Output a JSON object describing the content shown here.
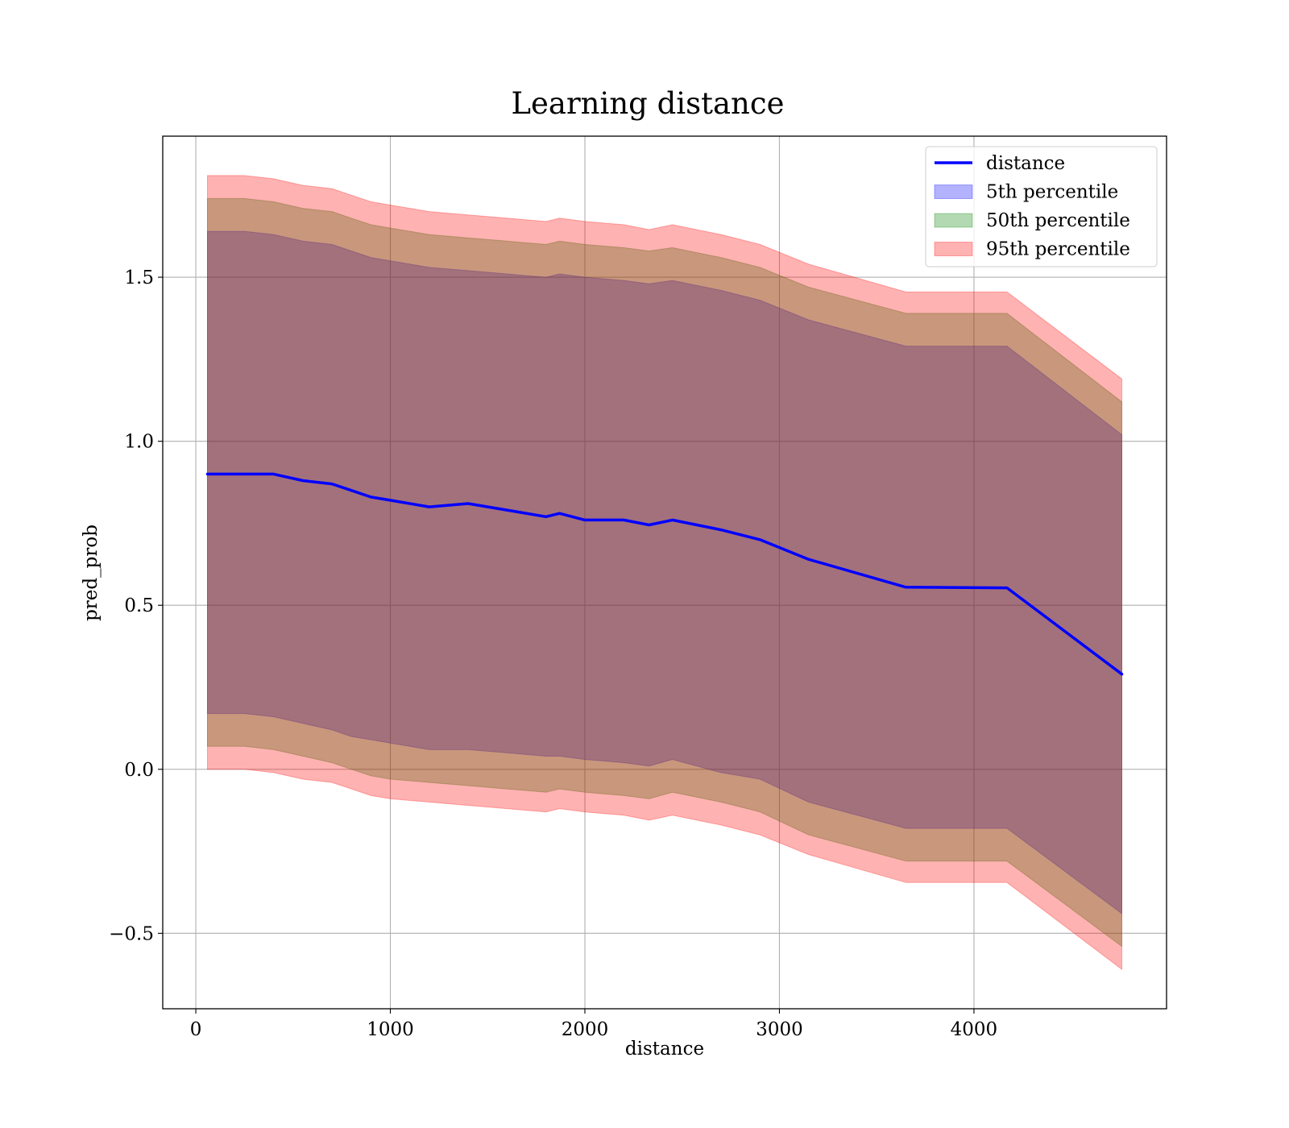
{
  "chart_data": {
    "type": "area",
    "title": "Learning distance",
    "xlabel": "distance",
    "ylabel": "pred_prob",
    "xlim": [
      -170,
      4990
    ],
    "ylim": [
      -0.73,
      1.93
    ],
    "grid": true,
    "legend_position": "top-right",
    "x_ticks": [
      0,
      1000,
      2000,
      3000,
      4000
    ],
    "x_tick_labels": [
      "0",
      "1000",
      "2000",
      "3000",
      "4000"
    ],
    "y_ticks": [
      -0.5,
      0.0,
      0.5,
      1.0,
      1.5
    ],
    "y_tick_labels": [
      "−0.5",
      "0.0",
      "0.5",
      "1.0",
      "1.5"
    ],
    "x": [
      60,
      250,
      400,
      550,
      700,
      800,
      900,
      1000,
      1200,
      1400,
      1600,
      1800,
      1870,
      2000,
      2200,
      2330,
      2450,
      2700,
      2900,
      3150,
      3650,
      4170,
      4760
    ],
    "series": [
      {
        "name": "distance",
        "kind": "line",
        "color": "#0000ff",
        "values": [
          0.9,
          0.9,
          0.9,
          0.88,
          0.87,
          0.85,
          0.83,
          0.82,
          0.8,
          0.81,
          0.79,
          0.77,
          0.78,
          0.76,
          0.76,
          0.745,
          0.76,
          0.73,
          0.7,
          0.64,
          0.555,
          0.553,
          0.29
        ]
      },
      {
        "name": "5th percentile",
        "kind": "band",
        "color": "#0000ff",
        "lower": [
          0.17,
          0.17,
          0.16,
          0.14,
          0.12,
          0.1,
          0.09,
          0.08,
          0.06,
          0.06,
          0.05,
          0.04,
          0.04,
          0.03,
          0.02,
          0.01,
          0.03,
          -0.01,
          -0.03,
          -0.1,
          -0.18,
          -0.18,
          -0.44
        ],
        "upper": [
          1.64,
          1.64,
          1.63,
          1.61,
          1.6,
          1.58,
          1.56,
          1.55,
          1.53,
          1.52,
          1.51,
          1.5,
          1.51,
          1.5,
          1.49,
          1.48,
          1.49,
          1.46,
          1.43,
          1.37,
          1.29,
          1.29,
          1.02
        ]
      },
      {
        "name": "50th percentile",
        "kind": "band",
        "color": "#008000",
        "lower": [
          0.07,
          0.07,
          0.06,
          0.04,
          0.02,
          0.0,
          -0.02,
          -0.03,
          -0.04,
          -0.05,
          -0.06,
          -0.07,
          -0.06,
          -0.07,
          -0.08,
          -0.09,
          -0.07,
          -0.1,
          -0.13,
          -0.2,
          -0.28,
          -0.28,
          -0.54
        ],
        "upper": [
          1.74,
          1.74,
          1.73,
          1.71,
          1.7,
          1.68,
          1.66,
          1.65,
          1.63,
          1.62,
          1.61,
          1.6,
          1.61,
          1.6,
          1.59,
          1.58,
          1.59,
          1.56,
          1.53,
          1.47,
          1.39,
          1.39,
          1.12
        ]
      },
      {
        "name": "95th percentile",
        "kind": "band",
        "color": "#ff0000",
        "lower": [
          0.0,
          0.0,
          -0.01,
          -0.03,
          -0.04,
          -0.06,
          -0.08,
          -0.09,
          -0.1,
          -0.11,
          -0.12,
          -0.13,
          -0.12,
          -0.13,
          -0.14,
          -0.155,
          -0.14,
          -0.17,
          -0.2,
          -0.26,
          -0.345,
          -0.345,
          -0.61
        ],
        "upper": [
          1.81,
          1.81,
          1.8,
          1.78,
          1.77,
          1.75,
          1.73,
          1.72,
          1.7,
          1.69,
          1.68,
          1.67,
          1.68,
          1.67,
          1.66,
          1.645,
          1.66,
          1.63,
          1.6,
          1.54,
          1.455,
          1.455,
          1.19
        ]
      }
    ]
  }
}
